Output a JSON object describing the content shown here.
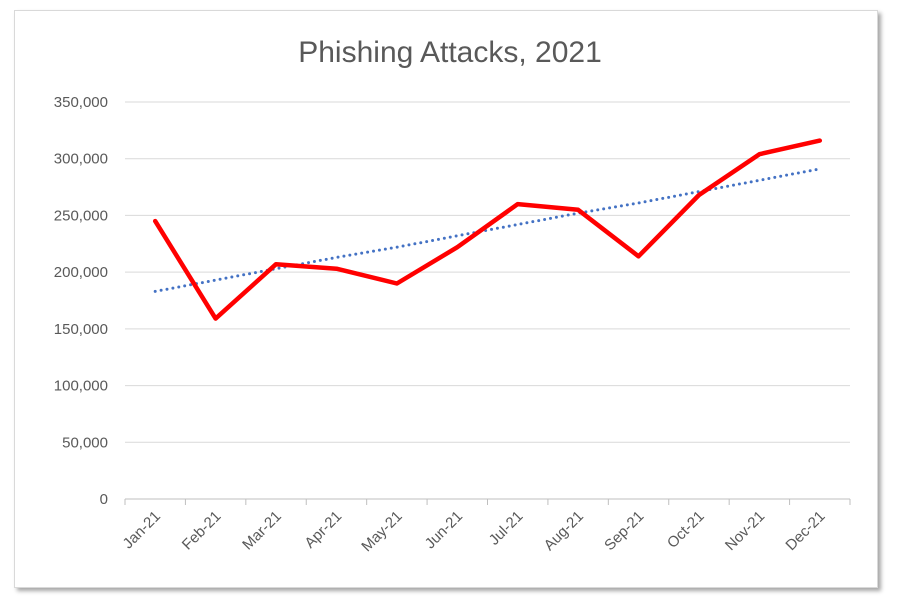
{
  "chart_data": {
    "type": "line",
    "title": "Phishing Attacks, 2021",
    "categories": [
      "Jan-21",
      "Feb-21",
      "Mar-21",
      "Apr-21",
      "May-21",
      "Jun-21",
      "Jul-21",
      "Aug-21",
      "Sep-21",
      "Oct-21",
      "Nov-21",
      "Dec-21"
    ],
    "series": [
      {
        "values": [
          245000,
          159000,
          207000,
          203000,
          190000,
          222000,
          260000,
          255000,
          214000,
          268000,
          304000,
          316000
        ],
        "color": "#ff0000",
        "style": "solid"
      },
      {
        "values": [
          183000,
          193000,
          203000,
          213000,
          222000,
          232000,
          242000,
          252000,
          261000,
          271000,
          281000,
          291000
        ],
        "color": "#4472c4",
        "style": "dotted",
        "kind": "linear-trendline"
      }
    ],
    "ylim": [
      0,
      350000
    ],
    "yticks": [
      0,
      50000,
      100000,
      150000,
      200000,
      250000,
      300000,
      350000
    ],
    "ytick_labels": [
      "0",
      "50,000",
      "100,000",
      "150,000",
      "200,000",
      "250,000",
      "300,000",
      "350,000"
    ],
    "grid": true,
    "legend": "none",
    "xlabel": "",
    "ylabel": ""
  }
}
